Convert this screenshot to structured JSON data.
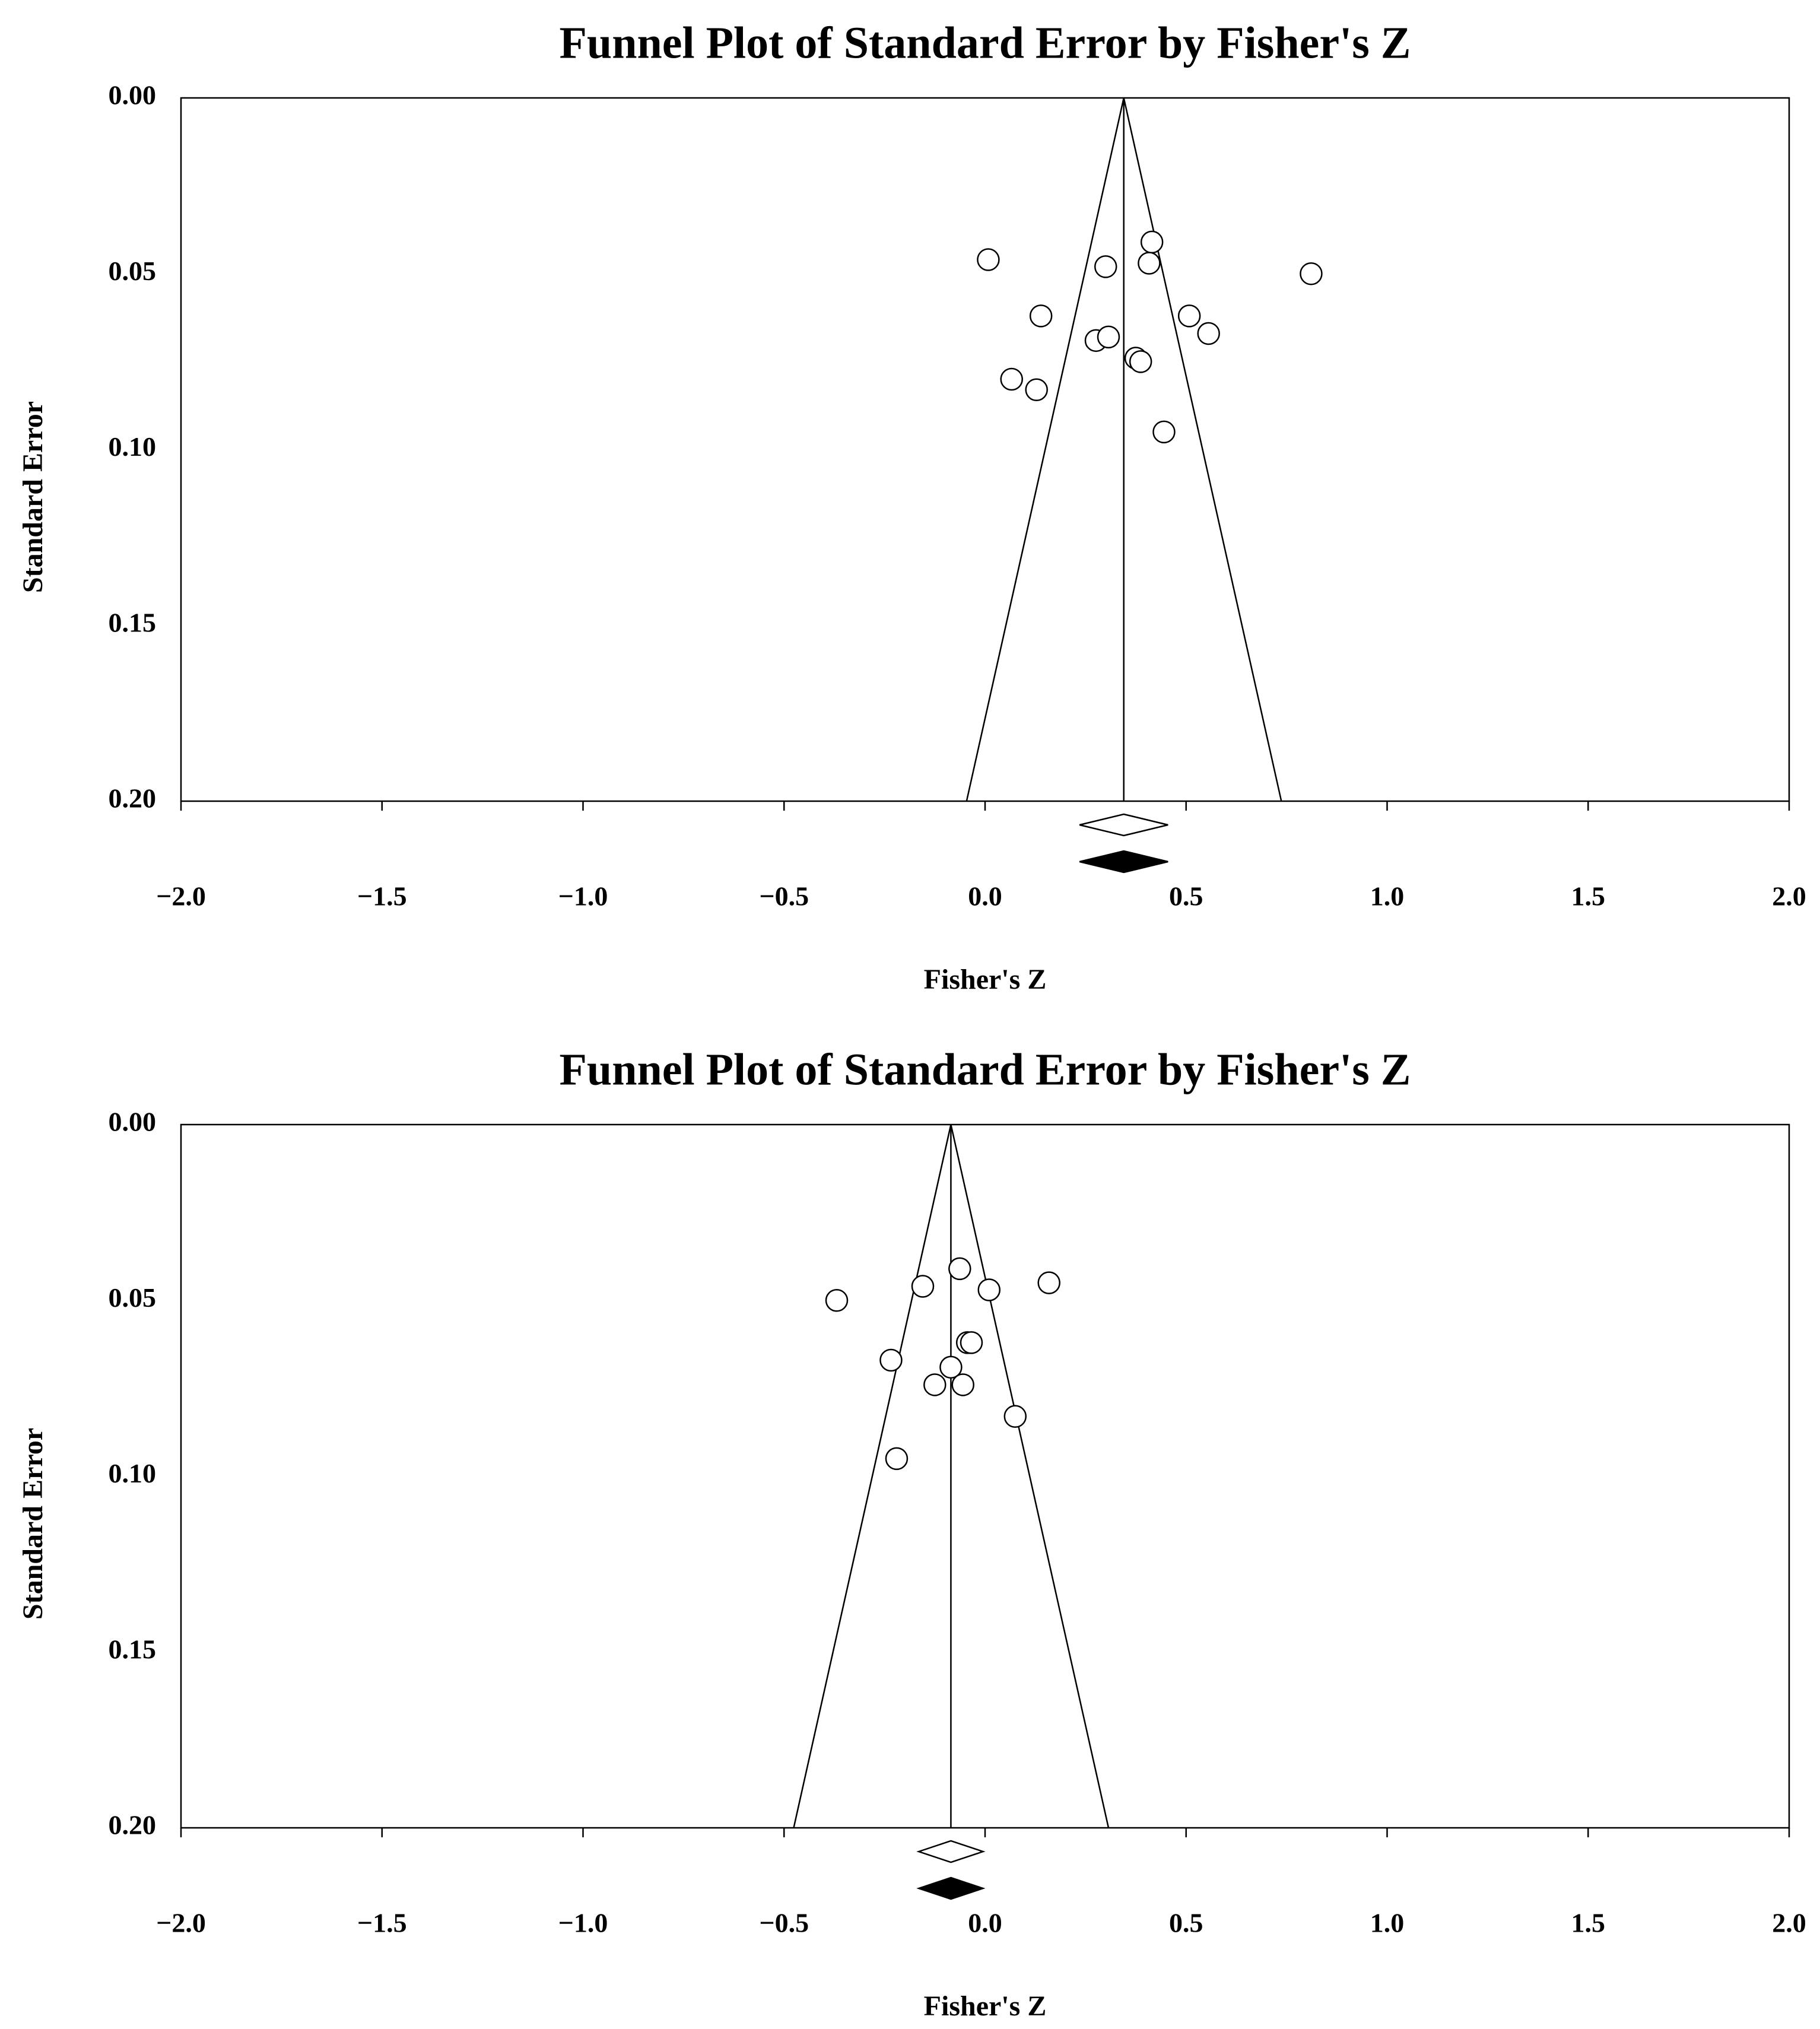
{
  "chart_data": [
    {
      "type": "scatter",
      "title": "Funnel Plot of Standard Error by Fisher's Z",
      "xlabel": "Fisher's Z",
      "ylabel": "Standard Error",
      "xlim": [
        -2.0,
        2.0
      ],
      "ylim": [
        0.2,
        0.0
      ],
      "y_inverted": true,
      "xticks": [
        "−2.0",
        "−1.5",
        "−1.0",
        "−0.5",
        "0.0",
        "0.5",
        "1.0",
        "1.5",
        "2.0"
      ],
      "xtick_values": [
        -2.0,
        -1.5,
        -1.0,
        -0.5,
        0.0,
        0.5,
        1.0,
        1.5,
        2.0
      ],
      "yticks": [
        "0.00",
        "0.05",
        "0.10",
        "0.15",
        "0.20"
      ],
      "ytick_values": [
        0.0,
        0.05,
        0.1,
        0.15,
        0.2
      ],
      "grid": false,
      "pooled_effect": 0.345,
      "funnel_bottom": [
        -0.046,
        0.737
      ],
      "observed_diamond": {
        "center": 0.345,
        "lower": 0.235,
        "upper": 0.455
      },
      "adjusted_diamond": {
        "center": 0.345,
        "lower": 0.235,
        "upper": 0.455
      },
      "points": [
        {
          "x": 0.008,
          "y": 0.046
        },
        {
          "x": 0.3,
          "y": 0.048
        },
        {
          "x": 0.415,
          "y": 0.041
        },
        {
          "x": 0.408,
          "y": 0.047
        },
        {
          "x": 0.811,
          "y": 0.05
        },
        {
          "x": 0.139,
          "y": 0.062
        },
        {
          "x": 0.508,
          "y": 0.062
        },
        {
          "x": 0.556,
          "y": 0.067
        },
        {
          "x": 0.276,
          "y": 0.069
        },
        {
          "x": 0.307,
          "y": 0.068
        },
        {
          "x": 0.375,
          "y": 0.074
        },
        {
          "x": 0.387,
          "y": 0.075
        },
        {
          "x": 0.066,
          "y": 0.08
        },
        {
          "x": 0.128,
          "y": 0.083
        },
        {
          "x": 0.445,
          "y": 0.095
        }
      ]
    },
    {
      "type": "scatter",
      "title": "Funnel Plot of Standard Error by Fisher's Z",
      "xlabel": "Fisher's Z",
      "ylabel": "Standard Error",
      "xlim": [
        -2.0,
        2.0
      ],
      "ylim": [
        0.2,
        0.0
      ],
      "y_inverted": true,
      "xticks": [
        "−2.0",
        "−1.5",
        "−1.0",
        "−0.5",
        "0.0",
        "0.5",
        "1.0",
        "1.5",
        "2.0"
      ],
      "xtick_values": [
        -2.0,
        -1.5,
        -1.0,
        -0.5,
        0.0,
        0.5,
        1.0,
        1.5,
        2.0
      ],
      "yticks": [
        "0.00",
        "0.05",
        "0.10",
        "0.15",
        "0.20"
      ],
      "ytick_values": [
        0.0,
        0.05,
        0.1,
        0.15,
        0.2
      ],
      "grid": false,
      "pooled_effect": -0.085,
      "funnel_bottom": [
        -0.476,
        0.307
      ],
      "observed_diamond": {
        "center": -0.085,
        "lower": -0.165,
        "upper": -0.005
      },
      "adjusted_diamond": {
        "center": -0.085,
        "lower": -0.165,
        "upper": -0.005
      },
      "points": [
        {
          "x": -0.369,
          "y": 0.05
        },
        {
          "x": -0.155,
          "y": 0.046
        },
        {
          "x": -0.063,
          "y": 0.041
        },
        {
          "x": 0.01,
          "y": 0.047
        },
        {
          "x": 0.159,
          "y": 0.045
        },
        {
          "x": -0.044,
          "y": 0.062
        },
        {
          "x": -0.034,
          "y": 0.062
        },
        {
          "x": -0.234,
          "y": 0.067
        },
        {
          "x": -0.085,
          "y": 0.069
        },
        {
          "x": -0.125,
          "y": 0.074
        },
        {
          "x": -0.055,
          "y": 0.074
        },
        {
          "x": 0.075,
          "y": 0.083
        },
        {
          "x": -0.22,
          "y": 0.095
        }
      ]
    }
  ]
}
